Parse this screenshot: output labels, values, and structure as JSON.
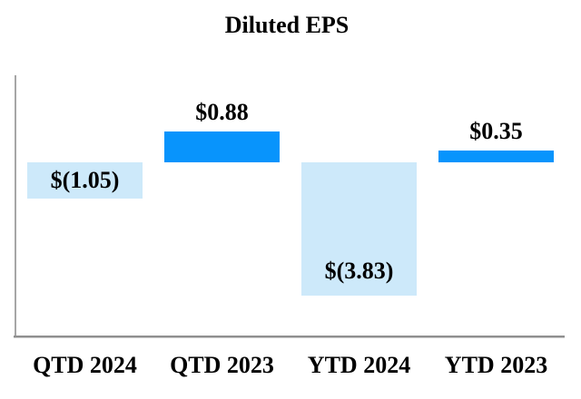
{
  "chart_data": {
    "type": "bar",
    "title": "Diluted EPS",
    "categories": [
      "QTD 2024",
      "QTD 2023",
      "YTD 2024",
      "YTD 2023"
    ],
    "values": [
      -1.05,
      0.88,
      -3.83,
      0.35
    ],
    "value_labels": [
      "$(1.05)",
      "$0.88",
      "$(3.83)",
      "$0.35"
    ],
    "bar_colors": [
      "#cde9fa",
      "#0894fc",
      "#cde9fa",
      "#0894fc"
    ],
    "xlabel": "",
    "ylabel": "",
    "ylim": [
      -5,
      2.5
    ],
    "grid": false,
    "legend": null,
    "colors": {
      "positive_bar": "#0894fc",
      "negative_bar": "#cde9fa",
      "axis_line": "#a6a6a6",
      "text": "#000000",
      "background": "#ffffff"
    }
  }
}
